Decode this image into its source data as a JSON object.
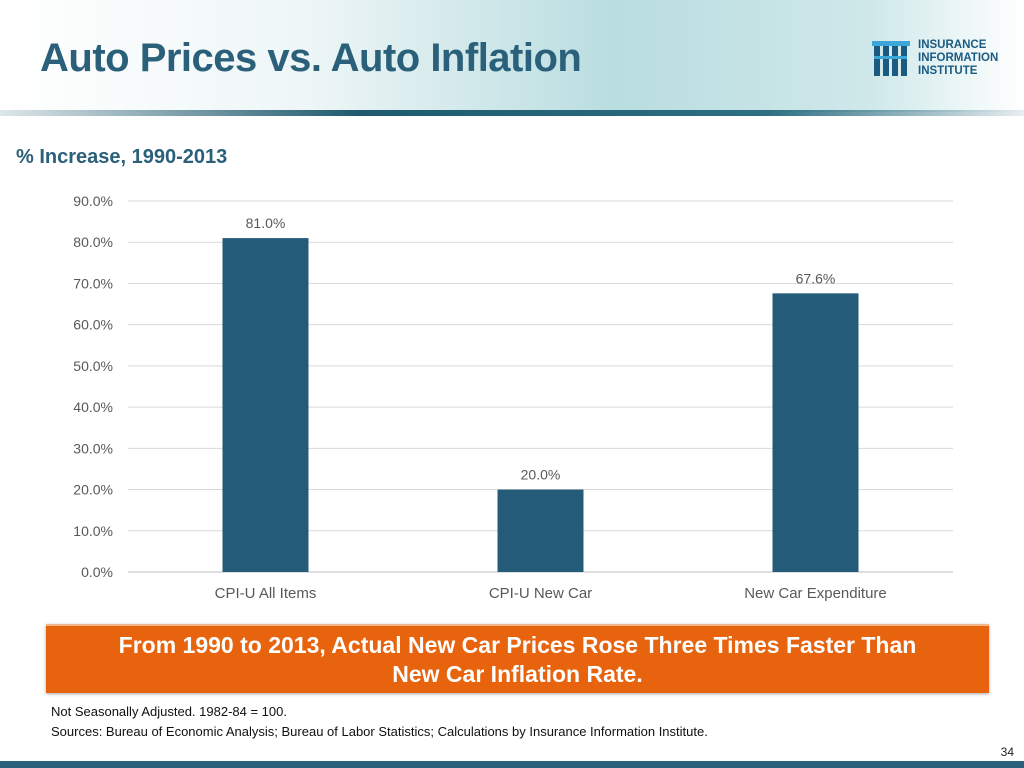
{
  "header": {
    "title": "Auto Prices vs. Auto Inflation",
    "logo": {
      "lines": [
        "INSURANCE",
        "INFORMATION",
        "INSTITUTE"
      ]
    }
  },
  "subtitle": "% Increase, 1990-2013",
  "chart_data": {
    "type": "bar",
    "title": "",
    "xlabel": "",
    "ylabel": "",
    "categories": [
      "CPI-U All Items",
      "CPI-U New Car",
      "New Car Expenditure"
    ],
    "values": [
      81.0,
      20.0,
      67.6
    ],
    "data_labels": [
      "81.0%",
      "20.0%",
      "67.6%"
    ],
    "ylim": [
      0,
      90
    ],
    "y_ticks": [
      0,
      10,
      20,
      30,
      40,
      50,
      60,
      70,
      80,
      90
    ],
    "y_tick_labels": [
      "0.0%",
      "10.0%",
      "20.0%",
      "30.0%",
      "40.0%",
      "50.0%",
      "60.0%",
      "70.0%",
      "80.0%",
      "90.0%"
    ],
    "grid": true,
    "bar_color": "#245b78"
  },
  "callout": {
    "line1": "From 1990 to 2013, Actual New Car Prices Rose Three Times Faster Than",
    "line2": "New Car Inflation Rate."
  },
  "footnotes": {
    "note": "Not Seasonally Adjusted. 1982-84 = 100.",
    "sources": "Sources: Bureau of Economic Analysis; Bureau of Labor Statistics; Calculations by Insurance Information Institute."
  },
  "page_number": "34"
}
